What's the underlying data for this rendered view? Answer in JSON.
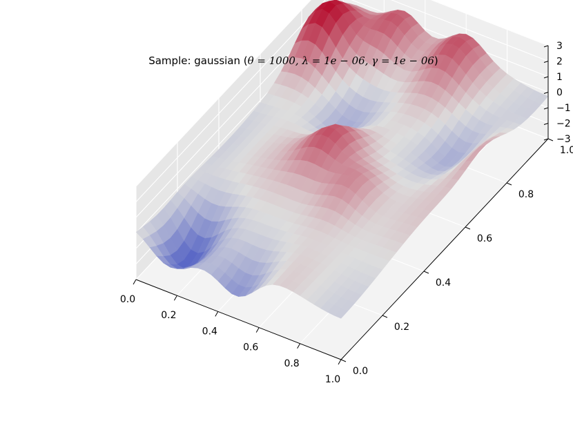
{
  "chart_data": {
    "type": "surface3d",
    "title": {
      "prefix": "Sample: gaussian (",
      "math": "θ = 1000, λ = 1e − 06, γ = 1e − 06",
      "suffix": ")"
    },
    "colormap": "coolwarm",
    "colors": {
      "low": "#3b4cc0",
      "mid": "#dddddd",
      "high": "#b40426"
    },
    "xlim": [
      0.0,
      1.0
    ],
    "ylim": [
      0.0,
      1.0
    ],
    "zlim": [
      -3,
      3
    ],
    "x_ticks": [
      "0.0",
      "0.2",
      "0.4",
      "0.6",
      "0.8",
      "1.0"
    ],
    "y_ticks": [
      "0.0",
      "0.2",
      "0.4",
      "0.6",
      "0.8",
      "1.0"
    ],
    "z_ticks": [
      "−3",
      "−2",
      "−1",
      "0",
      "1",
      "2",
      "3"
    ],
    "grid": true,
    "surface_peaks": [
      {
        "x": 0.08,
        "y": 0.85,
        "z": 2.8
      },
      {
        "x": 0.3,
        "y": 0.95,
        "z": 2.2
      },
      {
        "x": 0.6,
        "y": 0.95,
        "z": 1.7
      },
      {
        "x": 0.45,
        "y": 0.5,
        "z": 2.0
      },
      {
        "x": 0.65,
        "y": 0.4,
        "z": 1.5
      },
      {
        "x": 1.0,
        "y": 0.7,
        "z": 1.2
      }
    ],
    "surface_troughs": [
      {
        "x": 0.15,
        "y": 0.1,
        "z": -2.5
      },
      {
        "x": 0.5,
        "y": 0.0,
        "z": -1.6
      },
      {
        "x": 0.35,
        "y": 0.65,
        "z": -1.2
      },
      {
        "x": 0.85,
        "y": 0.7,
        "z": -1.2
      }
    ]
  }
}
